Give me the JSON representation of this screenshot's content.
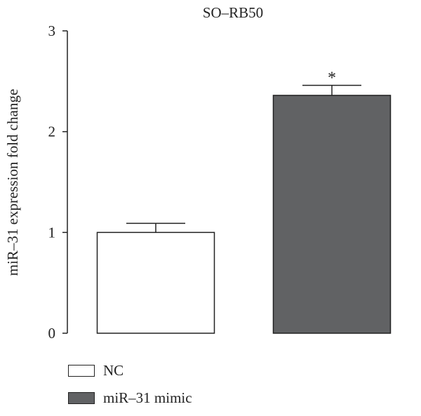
{
  "chart_data": {
    "type": "bar",
    "title": "SO–RB50",
    "xlabel": "",
    "ylabel": "miR–31 expression fold change",
    "ylim": [
      0,
      3
    ],
    "yticks": [
      "0",
      "1",
      "2",
      "3"
    ],
    "categories": [
      "NC",
      "miR–31 mimic"
    ],
    "values": [
      1.0,
      2.36
    ],
    "errors": [
      0.09,
      0.1
    ],
    "annotations": [
      "",
      "*"
    ],
    "colors": [
      "#ffffff",
      "#616264"
    ],
    "legend": {
      "position": "bottom-left",
      "entries": [
        "NC",
        "miR–31 mimic"
      ]
    },
    "grid": false
  }
}
